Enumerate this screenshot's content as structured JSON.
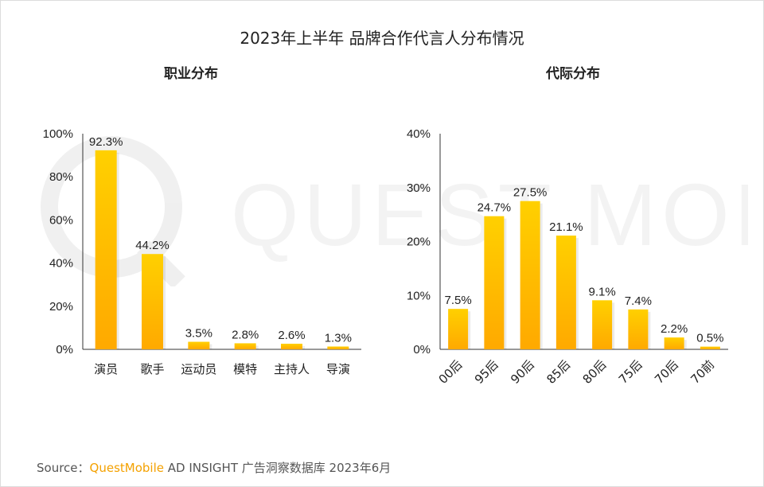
{
  "title": "2023年上半年 品牌合作代言人分布情况",
  "source": {
    "prefix": "Source：",
    "brand": "QuestMobile",
    "rest": " AD INSIGHT 广告洞察数据库 2023年6月"
  },
  "watermark_text": "QUEST MOBILE",
  "colors": {
    "bar_top": "#ffd000",
    "bar_bottom": "#ffa900",
    "axis": "#333333",
    "brand": "#f4a100"
  },
  "chart_data": [
    {
      "type": "bar",
      "title": "职业分布",
      "categories": [
        "演员",
        "歌手",
        "运动员",
        "模特",
        "主持人",
        "导演"
      ],
      "values": [
        92.3,
        44.2,
        3.5,
        2.8,
        2.6,
        1.3
      ],
      "value_labels": [
        "92.3%",
        "44.2%",
        "3.5%",
        "2.8%",
        "2.6%",
        "1.3%"
      ],
      "yticks": [
        "0%",
        "20%",
        "40%",
        "60%",
        "80%",
        "100%"
      ],
      "ylim": [
        0,
        100
      ],
      "grid": false,
      "legend": "none"
    },
    {
      "type": "bar",
      "title": "代际分布",
      "categories": [
        "00后",
        "95后",
        "90后",
        "85后",
        "80后",
        "75后",
        "70后",
        "70前"
      ],
      "values": [
        7.5,
        24.7,
        27.5,
        21.1,
        9.1,
        7.4,
        2.2,
        0.5
      ],
      "value_labels": [
        "7.5%",
        "24.7%",
        "27.5%",
        "21.1%",
        "9.1%",
        "7.4%",
        "2.2%",
        "0.5%"
      ],
      "yticks": [
        "0%",
        "10%",
        "20%",
        "30%",
        "40%"
      ],
      "ylim": [
        0,
        40
      ],
      "grid": false,
      "legend": "none"
    }
  ]
}
